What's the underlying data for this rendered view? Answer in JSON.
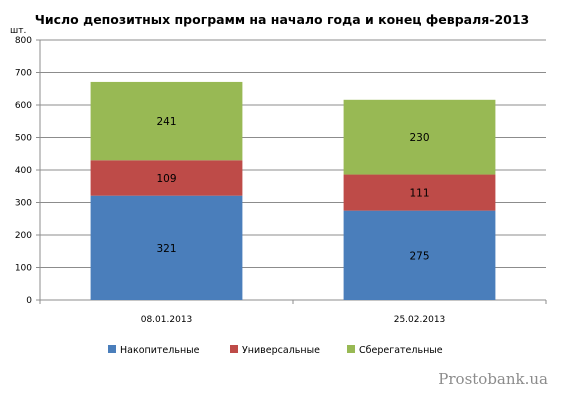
{
  "chart_data": {
    "type": "bar",
    "stacked": true,
    "title": "Число депозитных программ на начало года и конец февраля-2013",
    "ylabel": "шт.",
    "xlabel": "",
    "ylim": [
      0,
      800
    ],
    "yticks": [
      0,
      100,
      200,
      300,
      400,
      500,
      600,
      700,
      800
    ],
    "grid": true,
    "legend_position": "bottom",
    "categories": [
      "08.01.2013",
      "25.02.2013"
    ],
    "series": [
      {
        "name": "Накопительные",
        "values": [
          321,
          275
        ],
        "color": "#4a7ebb"
      },
      {
        "name": "Универсальные",
        "values": [
          109,
          111
        ],
        "color": "#be4b48"
      },
      {
        "name": "Сберегательные",
        "values": [
          241,
          230
        ],
        "color": "#98b954"
      }
    ]
  },
  "watermark": "Prostobank.ua"
}
